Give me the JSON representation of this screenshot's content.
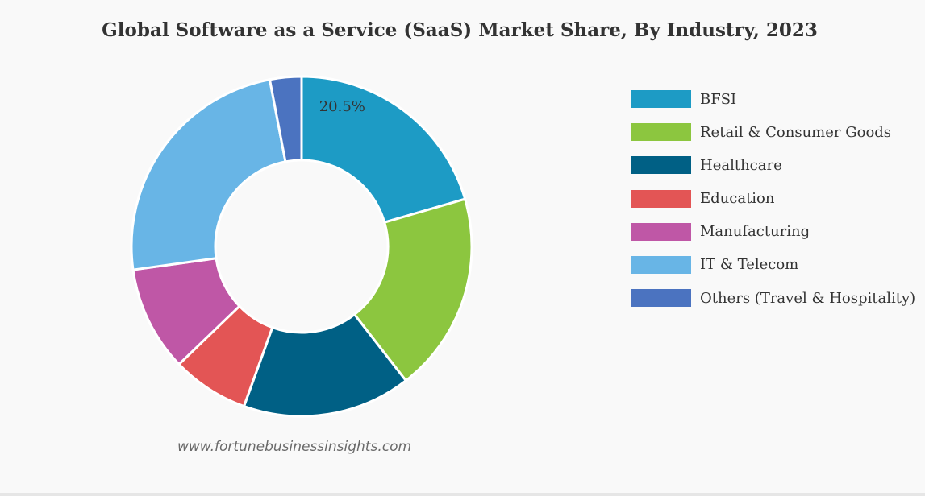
{
  "chart_data": {
    "type": "pie",
    "variant": "donut",
    "title": "Global Software as a Service (SaaS) Market Share, By Industry, 2023",
    "categories": [
      "BFSI",
      "Retail & Consumer Goods",
      "Healthcare",
      "Education",
      "Manufacturing",
      "IT & Telecom",
      "Others (Travel & Hospitality)"
    ],
    "values": [
      20.5,
      19.0,
      16.0,
      7.3,
      10.0,
      24.2,
      3.0
    ],
    "colors": [
      "#1d9bc5",
      "#8cc63f",
      "#006085",
      "#e35555",
      "#bf57a6",
      "#68b5e6",
      "#4b73c0"
    ],
    "data_labels": [
      {
        "category": "BFSI",
        "text": "20.5%"
      }
    ],
    "legend_position": "right"
  },
  "footer": {
    "source": "www.fortunebusinessinsights.com"
  }
}
